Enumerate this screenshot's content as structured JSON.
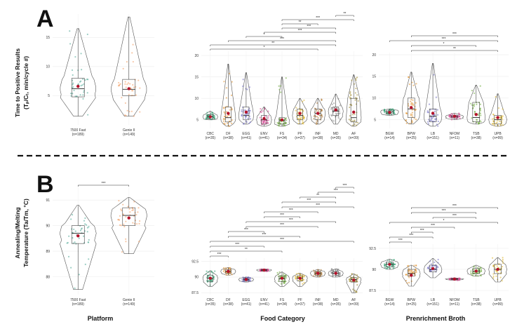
{
  "panel_labels": {
    "a": "A",
    "b": "B"
  },
  "ylabels": {
    "a_line1": "Time to Positive Results",
    "a_line2": "(Tₚ/Cₜ, min/cycle #)",
    "b_line1": "Annealing/Melting",
    "b_line2": "Temperature (Ta/Tm, °C)"
  },
  "bottom_labels": {
    "platform": "Platform",
    "food": "Food Category",
    "broth": "Prenrichment Broth"
  },
  "colors": {
    "platform": [
      "#4aa593",
      "#f29b5f"
    ],
    "food": [
      "#2a9d6e",
      "#e0902a",
      "#6f6cc4",
      "#d3408e",
      "#6aa735",
      "#dcb52a",
      "#b07a36",
      "#7f7f7f",
      "#9e8a2e"
    ],
    "broth": [
      "#2a9d6e",
      "#e0902a",
      "#6f6cc4",
      "#d3408e",
      "#6aa735",
      "#dcb52a"
    ],
    "mean_point": "#b3122a"
  },
  "chart_data": [
    {
      "id": "A-platform",
      "type": "violin-box",
      "ylabel": "Time to Positive Results (Tₚ/Cₜ, min/cycle #)",
      "ylim": [
        0,
        19
      ],
      "yticks": [
        5,
        10,
        15
      ],
      "categories": [
        "7500 Fast",
        "Genie II"
      ],
      "ns": [
        "(n=189)",
        "(n=149)"
      ],
      "stats": [
        {
          "min": 1.5,
          "q1": 4.8,
          "median": 6.2,
          "q3": 8.0,
          "max": 16.5,
          "mean": 6.6
        },
        {
          "min": 1.5,
          "q1": 5.0,
          "median": 6.1,
          "q3": 7.8,
          "max": 18.5,
          "mean": 6.2
        }
      ],
      "violin": "platform",
      "sig": []
    },
    {
      "id": "A-food",
      "type": "violin-box",
      "ylim": [
        3,
        24
      ],
      "yticks": [
        5,
        10,
        15,
        20
      ],
      "categories": [
        "CBC",
        "DF",
        "EGG",
        "ENV",
        "FS",
        "PF",
        "INF",
        "MD",
        "AF"
      ],
      "ns": [
        "(n=35)",
        "(n=38)",
        "(n=41)",
        "(n=41)",
        "(n=34)",
        "(n=37)",
        "(n=38)",
        "(n=35)",
        "(n=39)"
      ],
      "stats": [
        {
          "min": 5.0,
          "q1": 5.2,
          "median": 5.7,
          "q3": 6.2,
          "max": 7.0,
          "mean": 5.7
        },
        {
          "min": 3.5,
          "q1": 4.5,
          "median": 5.5,
          "q3": 8.0,
          "max": 18.0,
          "mean": 6.5
        },
        {
          "min": 4.0,
          "q1": 5.0,
          "median": 6.0,
          "q3": 8.0,
          "max": 16.0,
          "mean": 6.8
        },
        {
          "min": 3.5,
          "q1": 4.0,
          "median": 5.0,
          "q3": 6.0,
          "max": 8.0,
          "mean": 5.3
        },
        {
          "min": 3.5,
          "q1": 4.0,
          "median": 4.8,
          "q3": 5.5,
          "max": 15.0,
          "mean": 5.0
        },
        {
          "min": 4.0,
          "q1": 5.0,
          "median": 6.0,
          "q3": 7.5,
          "max": 10.0,
          "mean": 6.5
        },
        {
          "min": 4.0,
          "q1": 5.0,
          "median": 6.5,
          "q3": 7.5,
          "max": 10.0,
          "mean": 6.5
        },
        {
          "min": 4.0,
          "q1": 6.0,
          "median": 7.0,
          "q3": 8.0,
          "max": 11.0,
          "mean": 7.3
        },
        {
          "min": 3.5,
          "q1": 4.5,
          "median": 5.5,
          "q3": 10.0,
          "max": 15.5,
          "mean": 6.8
        }
      ],
      "violin": "food",
      "sig": [
        {
          "from": 7,
          "to": 8,
          "level": 9,
          "label": "**"
        },
        {
          "from": 4,
          "to": 8,
          "level": 8,
          "label": "***"
        },
        {
          "from": 4,
          "to": 6,
          "level": 7,
          "label": "**"
        },
        {
          "from": 4,
          "to": 7,
          "level": 6,
          "label": "***"
        },
        {
          "from": 3,
          "to": 7,
          "level": 5,
          "label": "***"
        },
        {
          "from": 2,
          "to": 4,
          "level": 4,
          "label": "*"
        },
        {
          "from": 1,
          "to": 7,
          "level": 3,
          "label": "***"
        },
        {
          "from": 0,
          "to": 7,
          "level": 2,
          "label": "**"
        },
        {
          "from": 0,
          "to": 6,
          "level": 1,
          "label": "*"
        }
      ]
    },
    {
      "id": "A-broth",
      "type": "violin-box",
      "ylim": [
        3,
        23
      ],
      "yticks": [
        5,
        10,
        15,
        20
      ],
      "categories": [
        "BGW",
        "BPW",
        "LB",
        "NFDM",
        "TSB",
        "UPB"
      ],
      "ns": [
        "(n=14)",
        "(n=25)",
        "(n=151)",
        "(n=11)",
        "(n=38)",
        "(n=99)"
      ],
      "stats": [
        {
          "min": 6.0,
          "q1": 6.3,
          "median": 6.8,
          "q3": 7.2,
          "max": 7.5,
          "mean": 6.7
        },
        {
          "min": 4.0,
          "q1": 5.5,
          "median": 7.5,
          "q3": 10.0,
          "max": 16.0,
          "mean": 7.8
        },
        {
          "min": 3.5,
          "q1": 4.5,
          "median": 5.8,
          "q3": 7.5,
          "max": 18.0,
          "mean": 6.5
        },
        {
          "min": 5.0,
          "q1": 5.4,
          "median": 5.7,
          "q3": 6.0,
          "max": 6.5,
          "mean": 5.8
        },
        {
          "min": 4.0,
          "q1": 4.5,
          "median": 5.5,
          "q3": 9.0,
          "max": 13.0,
          "mean": 6.2
        },
        {
          "min": 3.5,
          "q1": 4.0,
          "median": 5.0,
          "q3": 6.0,
          "max": 11.0,
          "mean": 5.5
        }
      ],
      "violin": "broth",
      "sig": [
        {
          "from": 1,
          "to": 5,
          "level": 4,
          "label": "***"
        },
        {
          "from": 0,
          "to": 5,
          "level": 3,
          "label": "***"
        },
        {
          "from": 1,
          "to": 4,
          "level": 2,
          "label": "*"
        },
        {
          "from": 1,
          "to": 5,
          "level": 1,
          "label": "**"
        }
      ]
    },
    {
      "id": "B-platform",
      "type": "violin-box",
      "ylabel": "Annealing/Melting Temperature (Ta/Tm, °C)",
      "ylim": [
        87.3,
        91.5
      ],
      "yticks": [
        88,
        89,
        90,
        91
      ],
      "categories": [
        "7500 Fast",
        "Genie II"
      ],
      "ns": [
        "(n=189)",
        "(n=149)"
      ],
      "stats": [
        {
          "min": 87.5,
          "q1": 89.3,
          "median": 89.7,
          "q3": 90.0,
          "max": 90.8,
          "mean": 89.6
        },
        {
          "min": 88.9,
          "q1": 90.0,
          "median": 90.4,
          "q3": 90.7,
          "max": 91.1,
          "mean": 90.3
        }
      ],
      "violin": "platform",
      "sig": [
        {
          "from": 0,
          "to": 1,
          "level": 1,
          "label": "***"
        }
      ]
    },
    {
      "id": "B-food",
      "type": "violin-box",
      "ylim": [
        87.2,
        97
      ],
      "yticks": [
        87.5,
        90.0,
        92.5
      ],
      "categories": [
        "CBC",
        "DF",
        "EGG",
        "ENV",
        "FS",
        "PF",
        "INF",
        "MD",
        "AF"
      ],
      "ns": [
        "(n=35)",
        "(n=38)",
        "(n=41)",
        "(n=41)",
        "(n=34)",
        "(n=37)",
        "(n=38)",
        "(n=35)",
        "(n=39)"
      ],
      "stats": [
        {
          "min": 88.5,
          "q1": 89.3,
          "median": 89.8,
          "q3": 90.3,
          "max": 91.0,
          "mean": 89.8
        },
        {
          "min": 90.3,
          "q1": 90.6,
          "median": 90.9,
          "q3": 91.2,
          "max": 91.5,
          "mean": 90.9
        },
        {
          "min": 89.2,
          "q1": 89.4,
          "median": 89.6,
          "q3": 89.8,
          "max": 90.0,
          "mean": 89.6
        },
        {
          "min": 90.9,
          "q1": 91.0,
          "median": 91.1,
          "q3": 91.2,
          "max": 91.3,
          "mean": 91.1
        },
        {
          "min": 88.5,
          "q1": 89.3,
          "median": 89.7,
          "q3": 90.2,
          "max": 90.8,
          "mean": 89.8
        },
        {
          "min": 88.5,
          "q1": 89.4,
          "median": 89.8,
          "q3": 90.2,
          "max": 90.6,
          "mean": 89.8
        },
        {
          "min": 90.0,
          "q1": 90.3,
          "median": 90.6,
          "q3": 90.9,
          "max": 91.2,
          "mean": 90.6
        },
        {
          "min": 90.0,
          "q1": 90.3,
          "median": 90.6,
          "q3": 90.9,
          "max": 91.3,
          "mean": 90.6
        },
        {
          "min": 87.5,
          "q1": 89.2,
          "median": 89.6,
          "q3": 89.9,
          "max": 90.5,
          "mean": 89.5
        }
      ],
      "violin": "food",
      "sig": [
        {
          "from": 7,
          "to": 8,
          "level": 15,
          "label": "***"
        },
        {
          "from": 6,
          "to": 8,
          "level": 14,
          "label": "***"
        },
        {
          "from": 5,
          "to": 7,
          "level": 13,
          "label": "**"
        },
        {
          "from": 4,
          "to": 7,
          "level": 12,
          "label": "***"
        },
        {
          "from": 4,
          "to": 8,
          "level": 11,
          "label": "***"
        },
        {
          "from": 3,
          "to": 6,
          "level": 10,
          "label": "***"
        },
        {
          "from": 3,
          "to": 5,
          "level": 9,
          "label": "***"
        },
        {
          "from": 2,
          "to": 7,
          "level": 8,
          "label": "***"
        },
        {
          "from": 2,
          "to": 6,
          "level": 7,
          "label": "***"
        },
        {
          "from": 1,
          "to": 3,
          "level": 6,
          "label": "***"
        },
        {
          "from": 1,
          "to": 5,
          "level": 5,
          "label": "***"
        },
        {
          "from": 0,
          "to": 8,
          "level": 4,
          "label": "***"
        },
        {
          "from": 0,
          "to": 3,
          "level": 3,
          "label": "***"
        },
        {
          "from": 0,
          "to": 4,
          "level": 2,
          "label": "**"
        },
        {
          "from": 0,
          "to": 1,
          "level": 1,
          "label": "***"
        }
      ]
    },
    {
      "id": "B-broth",
      "type": "violin-box",
      "ylim": [
        87.0,
        97
      ],
      "yticks": [
        87.5,
        90.0,
        92.5
      ],
      "categories": [
        "BGW",
        "BPW",
        "LB",
        "NFDM",
        "TSB",
        "UPB"
      ],
      "ns": [
        "(n=14)",
        "(n=25)",
        "(n=151)",
        "(n=11)",
        "(n=38)",
        "(n=99)"
      ],
      "stats": [
        {
          "min": 90.0,
          "q1": 90.3,
          "median": 90.6,
          "q3": 90.9,
          "max": 91.2,
          "mean": 90.6
        },
        {
          "min": 88.0,
          "q1": 89.2,
          "median": 89.5,
          "q3": 90.0,
          "max": 90.5,
          "mean": 89.3
        },
        {
          "min": 89.0,
          "q1": 89.7,
          "median": 90.0,
          "q3": 90.5,
          "max": 91.3,
          "mean": 90.1
        },
        {
          "min": 88.7,
          "q1": 88.8,
          "median": 88.85,
          "q3": 88.9,
          "max": 89.0,
          "mean": 88.85
        },
        {
          "min": 89.2,
          "q1": 89.5,
          "median": 89.8,
          "q3": 90.1,
          "max": 90.5,
          "mean": 89.8
        },
        {
          "min": 88.5,
          "q1": 89.5,
          "median": 90.0,
          "q3": 90.6,
          "max": 91.4,
          "mean": 90.0
        }
      ],
      "violin": "broth",
      "sig": [
        {
          "from": 1,
          "to": 5,
          "level": 8,
          "label": "***"
        },
        {
          "from": 1,
          "to": 4,
          "level": 7,
          "label": "***"
        },
        {
          "from": 2,
          "to": 4,
          "level": 6,
          "label": "***"
        },
        {
          "from": 0,
          "to": 5,
          "level": 5,
          "label": "*"
        },
        {
          "from": 1,
          "to": 3,
          "level": 4,
          "label": "***"
        },
        {
          "from": 1,
          "to": 2,
          "level": 3,
          "label": "***"
        },
        {
          "from": 0,
          "to": 2,
          "level": 2,
          "label": "***"
        },
        {
          "from": 0,
          "to": 1,
          "level": 1,
          "label": "***"
        }
      ]
    }
  ]
}
